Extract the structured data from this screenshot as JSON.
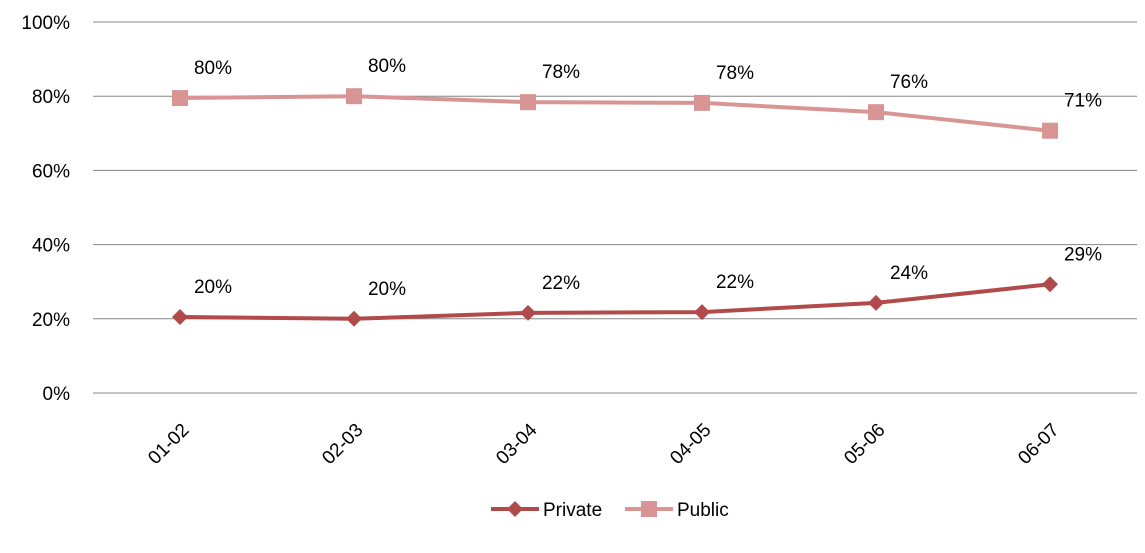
{
  "chart_data": {
    "type": "line",
    "title": "",
    "xlabel": "",
    "ylabel": "",
    "categories": [
      "01-02",
      "02-03",
      "03-04",
      "04-05",
      "05-06",
      "06-07"
    ],
    "ylim": [
      0,
      100
    ],
    "yticks": [
      0,
      20,
      40,
      60,
      80,
      100
    ],
    "ytick_labels": [
      "0%",
      "20%",
      "40%",
      "60%",
      "80%",
      "100%"
    ],
    "grid": true,
    "legend_position": "bottom",
    "series": [
      {
        "name": "Private",
        "marker": "diamond",
        "color": "#B14B4B",
        "values": [
          20.5,
          20.0,
          21.6,
          21.8,
          24.3,
          29.3
        ],
        "labels": [
          "20%",
          "20%",
          "22%",
          "22%",
          "24%",
          "29%"
        ]
      },
      {
        "name": "Public",
        "marker": "square",
        "color": "#D99594",
        "values": [
          79.5,
          80.0,
          78.4,
          78.2,
          75.7,
          70.7
        ],
        "labels": [
          "80%",
          "80%",
          "78%",
          "78%",
          "76%",
          "71%"
        ]
      }
    ],
    "colors": {
      "grid": "#878787",
      "text": "#000000"
    }
  }
}
